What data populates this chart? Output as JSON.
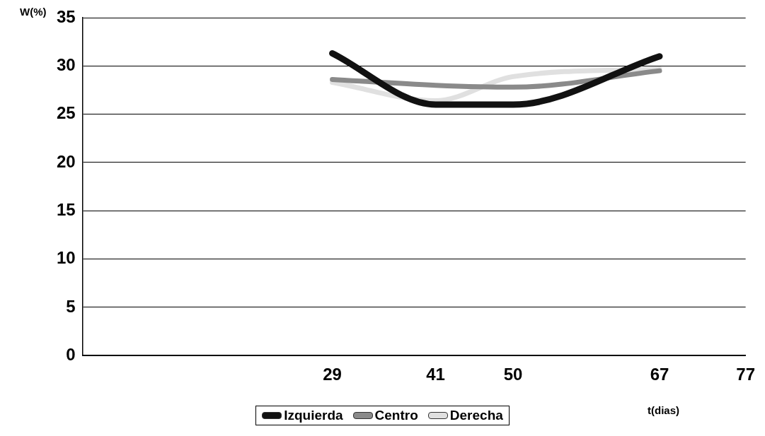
{
  "chart_data": {
    "type": "line",
    "xlabel": "t(dias)",
    "ylabel": "W(%)",
    "x": [
      29,
      41,
      50,
      67
    ],
    "series": [
      {
        "name": "Izquierda",
        "color": "#111111",
        "values": [
          31.3,
          26.0,
          26.0,
          31.0
        ]
      },
      {
        "name": "Centro",
        "color": "#8a8a8a",
        "values": [
          28.6,
          28.0,
          27.8,
          29.5
        ]
      },
      {
        "name": "Derecha",
        "color": "#e0e0e0",
        "values": [
          28.3,
          26.4,
          28.9,
          29.7
        ]
      }
    ],
    "xlim": [
      0,
      77
    ],
    "xticks": [
      29,
      41,
      50,
      67,
      77
    ],
    "ylim": [
      0,
      35
    ],
    "yticks": [
      0,
      5,
      10,
      15,
      20,
      25,
      30,
      35
    ],
    "grid": "y",
    "legend": "bottom",
    "marker": "none",
    "line_style": "solid"
  }
}
